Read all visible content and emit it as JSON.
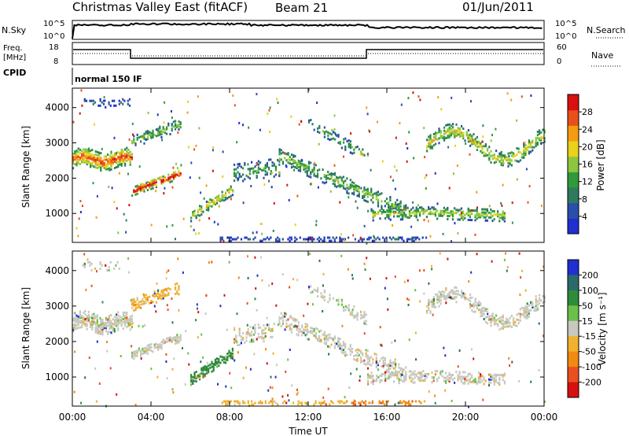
{
  "header": {
    "station": "Christmas Valley East (fitACF)",
    "beam": "Beam 21",
    "date": "01/Jun/2011"
  },
  "strips": {
    "nsky_label": "N.Sky",
    "nsky_ticks": [
      "10^5",
      "10^0"
    ],
    "nsearch_label": "N.Search",
    "nsearch_ticks": [
      "10^5",
      "10^0"
    ],
    "freq_label": "Freq.",
    "freq_unit": "[MHz]",
    "freq_ticks": [
      "18",
      "8"
    ],
    "nave_label": "Nave",
    "nave_ticks": [
      "60",
      "0"
    ],
    "cpid_label": "CPID",
    "cpid_value": "normal 150 IF"
  },
  "colors": {
    "power": [
      "#1f2fd0",
      "#2a4fa8",
      "#2e7a5e",
      "#2f9a3a",
      "#8cc63f",
      "#e8d21a",
      "#f39c12",
      "#e8501a",
      "#d81010"
    ],
    "velocity": [
      "#1f2fd0",
      "#2a6a6a",
      "#2e8b3a",
      "#6cc04a",
      "#c8c8c0",
      "#f0b030",
      "#f08a10",
      "#e85020",
      "#d81010"
    ],
    "background": "#ffffff"
  },
  "chart_data": [
    {
      "type": "heatmap",
      "name": "power",
      "ylabel": "Slant Range [km]",
      "y_ticks": [
        "1000",
        "2000",
        "3000",
        "4000"
      ],
      "ylim": [
        180,
        4550
      ],
      "colorbar_label": "Power [dB]",
      "colorbar_ticks": [
        "4",
        "8",
        "12",
        "16",
        "20",
        "24",
        "28"
      ],
      "colorbar_range": [
        0,
        30
      ]
    },
    {
      "type": "heatmap",
      "name": "velocity",
      "ylabel": "Slant Range [km]",
      "y_ticks": [
        "1000",
        "2000",
        "3000",
        "4000"
      ],
      "ylim": [
        180,
        4550
      ],
      "colorbar_label": "Velocity [m s⁻¹]",
      "colorbar_ticks": [
        "200",
        "100",
        "50",
        "15",
        "-15",
        "-50",
        "-100",
        "-200"
      ],
      "xlabel": "Time UT",
      "x_ticks": [
        "00:00",
        "04:00",
        "08:00",
        "12:00",
        "16:00",
        "20:00",
        "00:00"
      ],
      "xlim": [
        0,
        24
      ]
    }
  ]
}
